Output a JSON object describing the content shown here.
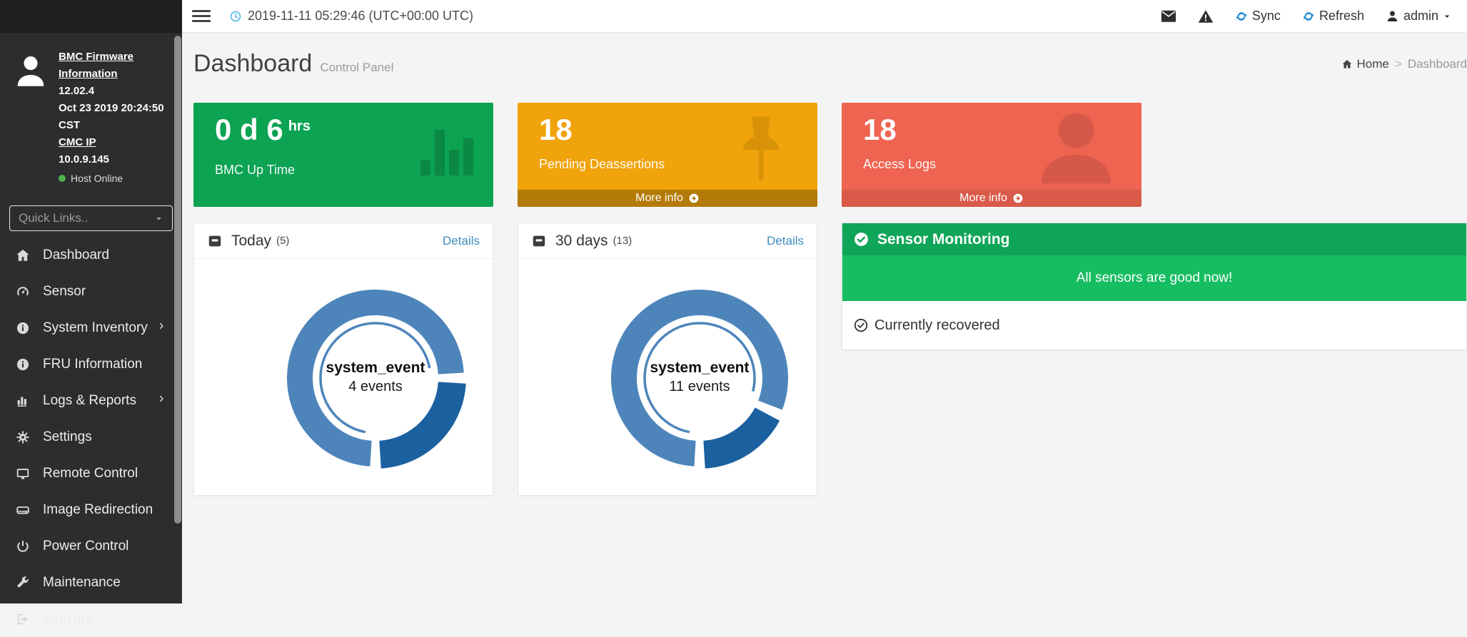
{
  "topbar": {
    "timestamp": "2019-11-11 05:29:46 (UTC+00:00 UTC)",
    "sync_label": "Sync",
    "refresh_label": "Refresh",
    "username": "admin"
  },
  "page_header": {
    "title": "Dashboard",
    "subtitle": "Control Panel"
  },
  "breadcrumb": {
    "home_label": "Home",
    "separator": ">",
    "current": "Dashboard"
  },
  "sidebar": {
    "firmware_info_label": "BMC Firmware Information",
    "firmware_version": "12.02.4",
    "firmware_date": "Oct 23 2019 20:24:50 CST",
    "cmc_ip_label": "CMC IP",
    "cmc_ip": "10.0.9.145",
    "host_status": "Host Online",
    "host_status_color": "#4db04d",
    "quick_links_placeholder": "Quick Links..",
    "items": [
      {
        "label": "Dashboard",
        "icon": "home-icon",
        "has_submenu": false
      },
      {
        "label": "Sensor",
        "icon": "gauge-icon",
        "has_submenu": false
      },
      {
        "label": "System Inventory",
        "icon": "info-circle-icon",
        "has_submenu": true
      },
      {
        "label": "FRU Information",
        "icon": "info-circle-icon",
        "has_submenu": false
      },
      {
        "label": "Logs & Reports",
        "icon": "bar-chart-icon",
        "has_submenu": true
      },
      {
        "label": "Settings",
        "icon": "gear-icon",
        "has_submenu": false
      },
      {
        "label": "Remote Control",
        "icon": "monitor-icon",
        "has_submenu": false
      },
      {
        "label": "Image Redirection",
        "icon": "drive-icon",
        "has_submenu": false
      },
      {
        "label": "Power Control",
        "icon": "power-icon",
        "has_submenu": false
      },
      {
        "label": "Maintenance",
        "icon": "wrench-icon",
        "has_submenu": false
      },
      {
        "label": "Sign out",
        "icon": "sign-out-icon",
        "has_submenu": false
      }
    ]
  },
  "summary_cards": [
    {
      "value": "0 d 6",
      "unit": "hrs",
      "label": "BMC Up Time",
      "icon": "bar-chart-icon",
      "color": "#0ca352"
    },
    {
      "value": "18",
      "label": "Pending Deassertions",
      "icon": "pushpin-icon",
      "color": "#f0a30a",
      "more_info_label": "More info"
    },
    {
      "value": "18",
      "label": "Access Logs",
      "icon": "person-icon",
      "color": "#ef6351",
      "more_info_label": "More info"
    }
  ],
  "event_panels": [
    {
      "title": "Today",
      "count": "(5)",
      "details_label": "Details"
    },
    {
      "title": "30 days",
      "count": "(13)",
      "details_label": "Details"
    }
  ],
  "sensor_panel": {
    "title": "Sensor Monitoring",
    "banner": "All sensors are good now!",
    "status": "Currently recovered"
  },
  "chart_data": [
    {
      "type": "donut",
      "panel": "Today (5)",
      "center_label": "system_event",
      "center_value": "4 events",
      "total_events": 4,
      "slices": [
        {
          "name": "events",
          "value": 3,
          "color": "#4d85bb"
        },
        {
          "name": "events-highlight",
          "value": 1,
          "color": "#1b609f"
        }
      ],
      "start_angle_deg": 180,
      "gap_deg": 7,
      "legend": "none"
    },
    {
      "type": "donut",
      "panel": "30 days (13)",
      "center_label": "system_event",
      "center_value": "11 events",
      "total_events": 11,
      "slices": [
        {
          "name": "events",
          "value": 9,
          "color": "#4d85bb"
        },
        {
          "name": "events-highlight",
          "value": 2,
          "color": "#1b609f"
        }
      ],
      "start_angle_deg": 180,
      "gap_deg": 7,
      "legend": "none"
    }
  ]
}
